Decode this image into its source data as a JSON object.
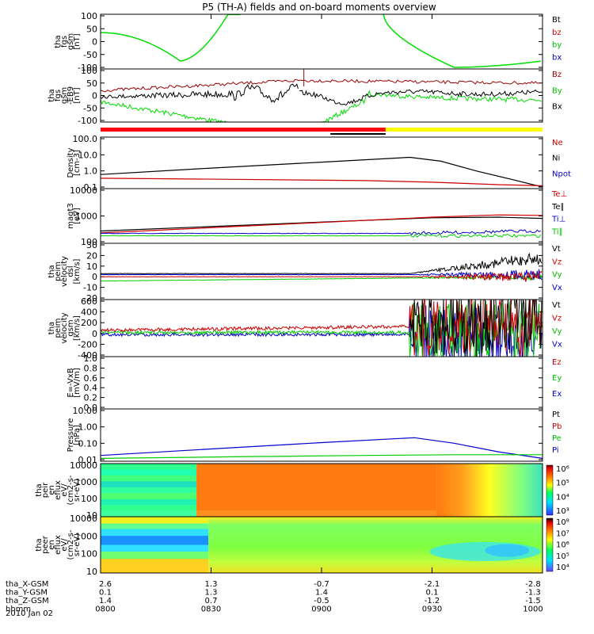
{
  "title": "P5 (TH-A) fields and on-board moments overview",
  "panels": [
    {
      "id": "fgs",
      "ylabel": [
        "tha",
        "fgs",
        "gsm",
        "[nT]"
      ],
      "ticks": [
        "100",
        "50",
        "0",
        "-50",
        "-100"
      ],
      "legend": [
        {
          "label": "Bt",
          "color": "#000000"
        },
        {
          "label": "bz",
          "color": "#cc0000"
        },
        {
          "label": "by",
          "color": "#00c000"
        },
        {
          "label": "bx",
          "color": "#0000cc"
        }
      ]
    },
    {
      "id": "fgl",
      "ylabel": [
        "tha",
        "fgs",
        "gsm",
        "-EB9",
        "[nT]"
      ],
      "ticks": [
        "100",
        "50",
        "0",
        "-50",
        "-100"
      ],
      "legend": [
        {
          "label": "Bz",
          "color": "#990000"
        },
        {
          "label": "By",
          "color": "#00c000"
        },
        {
          "label": "Bx",
          "color": "#000000"
        }
      ]
    },
    {
      "id": "density",
      "ylabel": [
        "Density",
        "[cm-3]"
      ],
      "ticks": [
        "100.0",
        "10.0",
        "1.0",
        "0.1"
      ],
      "legend": [
        {
          "label": "Ne",
          "color": "#cc0000"
        },
        {
          "label": "Ni",
          "color": "#000000"
        },
        {
          "label": "Npot",
          "color": "#0000cc"
        }
      ]
    },
    {
      "id": "temp",
      "ylabel": [
        "magt3",
        "[eV]"
      ],
      "ticks": [
        "10000",
        "1000",
        "100"
      ],
      "legend": [
        {
          "label": "Te⊥",
          "color": "#cc0000"
        },
        {
          "label": "Te∥",
          "color": "#000000"
        },
        {
          "label": "Ti⊥",
          "color": "#0000cc"
        },
        {
          "label": "Ti∥",
          "color": "#00c000"
        }
      ]
    },
    {
      "id": "vel_dsl",
      "ylabel": [
        "tha",
        "peim",
        "velocity",
        "dsl",
        "[km/s]"
      ],
      "ticks": [
        "30",
        "20",
        "10",
        "0",
        "-10",
        "-20"
      ],
      "legend": [
        {
          "label": "Vt",
          "color": "#000000"
        },
        {
          "label": "Vz",
          "color": "#cc0000"
        },
        {
          "label": "Vy",
          "color": "#00c000"
        },
        {
          "label": "Vx",
          "color": "#0000cc"
        }
      ]
    },
    {
      "id": "vel_gsm",
      "ylabel": [
        "tha",
        "peim",
        "velocity",
        "gsm",
        "[km/s]"
      ],
      "ticks": [
        "600",
        "400",
        "200",
        "0",
        "-200",
        "-400"
      ],
      "legend": [
        {
          "label": "Vt",
          "color": "#000000"
        },
        {
          "label": "Vz",
          "color": "#cc0000"
        },
        {
          "label": "Vy",
          "color": "#00c000"
        },
        {
          "label": "Vx",
          "color": "#0000cc"
        }
      ]
    },
    {
      "id": "efield",
      "ylabel": [
        "E=-VxB",
        "[mV/m]"
      ],
      "ticks": [
        "1.0",
        "0.8",
        "0.6",
        "0.4",
        "0.2",
        "0.0"
      ],
      "legend": [
        {
          "label": "Ez",
          "color": "#cc0000"
        },
        {
          "label": "Ey",
          "color": "#00c000"
        },
        {
          "label": "Ex",
          "color": "#0000cc"
        }
      ]
    },
    {
      "id": "pressure",
      "ylabel": [
        "Pressure",
        "[nPa]"
      ],
      "ticks": [
        "10.00",
        "1.00",
        "0.10",
        "0.01"
      ],
      "legend": [
        {
          "label": "Pt",
          "color": "#000000"
        },
        {
          "label": "Pb",
          "color": "#cc0000"
        },
        {
          "label": "Pe",
          "color": "#00c000"
        },
        {
          "label": "Pi",
          "color": "#0000cc"
        }
      ]
    },
    {
      "id": "peir",
      "ylabel": [
        "tha",
        "peir",
        "en",
        "eflux",
        "eV/",
        "(cm2-s-",
        "sr-eV)"
      ],
      "ticks": [
        "10000",
        "1000",
        "100",
        "10"
      ],
      "colorbar": [
        "10⁶",
        "10⁵",
        "10⁴",
        "10³"
      ]
    },
    {
      "id": "peer",
      "ylabel": [
        "tha",
        "peer",
        "en",
        "eflux",
        "eV/",
        "(cm2-s-",
        "sr-eV)"
      ],
      "ticks": [
        "10000",
        "1000",
        "100",
        "10"
      ],
      "colorbar": [
        "10⁸",
        "10⁷",
        "10⁶",
        "10⁵",
        "10⁴"
      ]
    }
  ],
  "xaxis": {
    "rows": [
      {
        "label": "tha_X-GSM",
        "values": [
          "2.6",
          "1.3",
          "-0.7",
          "-2.1",
          "-2.8"
        ]
      },
      {
        "label": "tha_Y-GSM",
        "values": [
          "0.1",
          "1.3",
          "1.4",
          "0.1",
          "-1.3"
        ]
      },
      {
        "label": "tha_Z-GSM",
        "values": [
          "1.4",
          "0.7",
          "-0.5",
          "-1.2",
          "-1.5"
        ]
      },
      {
        "label": "hhmm",
        "values": [
          "0800",
          "0830",
          "0900",
          "0930",
          "1000"
        ]
      }
    ],
    "date": "2010 Jan 02"
  },
  "chart_data": {
    "type": "line",
    "title": "P5 (TH-A) fields and on-board moments overview",
    "x_times": [
      "0800",
      "0830",
      "0900",
      "0930",
      "1000"
    ],
    "density": {
      "x": [
        "0800",
        "0830",
        "0900",
        "0922",
        "0930",
        "1000"
      ],
      "Ni": [
        0.6,
        1.5,
        3.5,
        7.0,
        3.0,
        0.1
      ],
      "Ne": [
        0.35,
        0.3,
        0.26,
        0.22,
        0.18,
        0.12
      ]
    },
    "pressure": {
      "x": [
        "0800",
        "0830",
        "0900",
        "0925",
        "0945",
        "1000"
      ],
      "Pi": [
        0.018,
        0.045,
        0.11,
        0.22,
        0.06,
        0.012
      ],
      "Pe": [
        0.012,
        0.015,
        0.018,
        0.02,
        0.02,
        0.02
      ]
    },
    "temperature": {
      "x": [
        "0800",
        "0830",
        "0900",
        "0930",
        "1000"
      ],
      "Te_perp": [
        220,
        350,
        560,
        900,
        1100
      ],
      "Te_par": [
        260,
        380,
        580,
        850,
        800
      ],
      "Ti_perp": [
        210,
        210,
        210,
        240,
        270
      ],
      "Ti_par": [
        170,
        170,
        170,
        180,
        180
      ]
    }
  }
}
